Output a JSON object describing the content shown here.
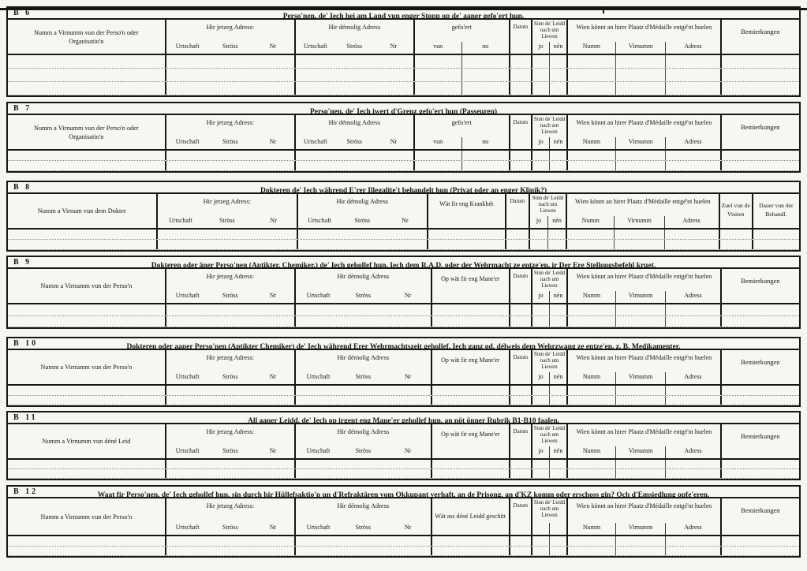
{
  "page": {
    "paper_color": "#f6f5ef",
    "ink_color": "#171716"
  },
  "labels": {
    "jetzeg_adress": "Hir jetzeg Adress:",
    "demolig_adress": "Hir démolig Adress",
    "urtschaft": "Urtschaft",
    "stross": "Ströss",
    "nr": "Nr",
    "gefoert": "gefo'ert",
    "vun": "vun",
    "no": "no",
    "datum": "Datum",
    "sinn_leidd": "Sinn de' Leidd nach um Liewen",
    "jo": "jo",
    "nen": "nén",
    "wien_medaille": "Wien könnt an hirer Plaatz d'Médaille entgé'nt huelen",
    "numm": "Numm",
    "virnumm": "Virnumm",
    "adress": "Adress",
    "bemierkungen": "Bemierkungen"
  },
  "sections": [
    {
      "id": "B 6",
      "title": "Perso'nen, de' Iech hei am Land vun enger Stopp op de' aaner gefo'ert hun.",
      "name_col": "Numm a Virnumm vun der Perso'n oder Organisatio'n",
      "body_rows": 3
    },
    {
      "id": "B 7",
      "title": "Perso'nen, de' Iech iwert d'Grenz gefo'ert hun (Passeuren)",
      "name_col": "Numm a Virnumm vun der Perso'n oder Organisatio'n",
      "body_rows": 2
    },
    {
      "id": "B 8",
      "title": "Dokteren de' Iech während E'rer Illegalite't behandelt hun (Privat oder an enger Klinik?)",
      "name_col": "Numm a Virnum vun dem Dokter",
      "extra_col": "Wät fir eng Krankhét",
      "zuel_col": "Zuel vun de Visiten",
      "dauer_col": "Dauer vun der Behandl.",
      "body_rows": 2
    },
    {
      "id": "B 9",
      "title": "Dokteren oder âner Perso'nen (Aptikter, Chemiker,) de' Iech gehollef hun, Iech dem R.A.D. oder der Wehrmacht ze entze'en, ir Der Ere Stellongsbefehl kruet.",
      "name_col": "Numm a Virnumm vun der Perso'n",
      "extra_col": "Op wät fir eng Mane'er",
      "body_rows": 2
    },
    {
      "id": "B 10",
      "title": "Dokteren oder aaner Perso'nen (Aptikter Chemiker) de' Iech während Erer Wehrmachtszeit gehollef, Iech ganz od. délweis dem Wehrzwang ze entze'en. z. B. Medikamenter.",
      "name_col": "Numm a Virnumm vun der Perso'n",
      "extra_col": "Op wät fir eng Mane'er",
      "body_rows": 2
    },
    {
      "id": "B 11",
      "title": "All aaner Leidd, de' Iech op irgent eng Mane'er gehollef hun, an nöt önner Rubrik B1-B10 faalen.",
      "name_col": "Numm a Virnumm vun déné Leid",
      "extra_col": "Op wät fir eng Mane'er",
      "body_rows": 2
    },
    {
      "id": "B 12",
      "title": "Waat fir Perso'nen, de' Iech gehollef hun, sin durch hir Hüllefsaktio'n un d'Refraktären vom Okkupant verhaft, an de Prisong, an d'KZ komm oder erschoss gin? Och d'Emsiedlung opfe'eren.",
      "name_col": "Numm a Virnumm vun der Perso'n",
      "extra_col": "Wät ass déné Leidd geschitt",
      "body_rows": 2
    }
  ]
}
